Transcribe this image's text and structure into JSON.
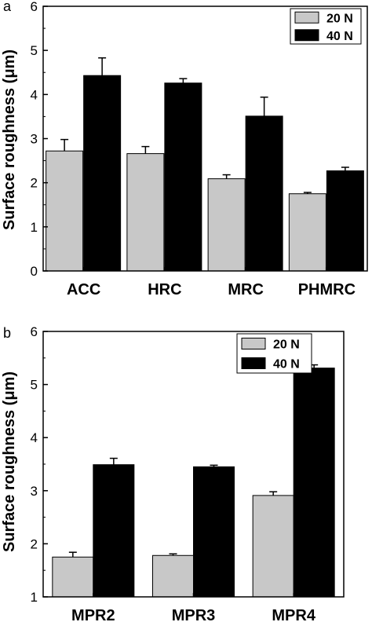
{
  "chart_data": [
    {
      "panel": "a",
      "type": "bar",
      "ylabel": "Surface roughness (μm)",
      "ylim": [
        0,
        6
      ],
      "yticks": [
        "0",
        "1",
        "2",
        "3",
        "4",
        "5",
        "6"
      ],
      "categories": [
        "ACC",
        "HRC",
        "MRC",
        "PHMRC"
      ],
      "series": [
        {
          "name": "20 N",
          "color": "#c8c8c8",
          "values": [
            2.72,
            2.66,
            2.09,
            1.75
          ],
          "errors": [
            0.26,
            0.16,
            0.09,
            0.03
          ]
        },
        {
          "name": "40 N",
          "color": "#000000",
          "values": [
            4.43,
            4.26,
            3.51,
            2.27
          ],
          "errors": [
            0.4,
            0.1,
            0.43,
            0.08
          ]
        }
      ],
      "legend": "top-right",
      "grid": false
    },
    {
      "panel": "b",
      "type": "bar",
      "ylabel": "Surface roughness (μm)",
      "ylim": [
        1,
        6
      ],
      "yticks": [
        "1",
        "2",
        "3",
        "4",
        "5",
        "6"
      ],
      "categories": [
        "MPR2",
        "MPR3",
        "MPR4"
      ],
      "series": [
        {
          "name": "20 N",
          "color": "#c8c8c8",
          "values": [
            1.75,
            1.78,
            2.91
          ],
          "errors": [
            0.09,
            0.03,
            0.07
          ]
        },
        {
          "name": "40 N",
          "color": "#000000",
          "values": [
            3.49,
            3.45,
            5.31
          ],
          "errors": [
            0.12,
            0.03,
            0.06
          ]
        }
      ],
      "legend": "top-center",
      "grid": false
    }
  ]
}
